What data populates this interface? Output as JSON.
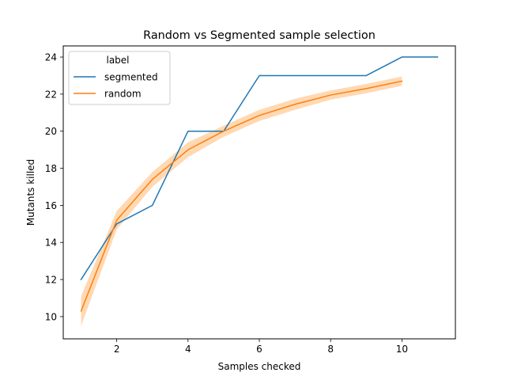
{
  "chart_data": {
    "type": "line",
    "title": "Random vs Segmented sample selection",
    "xlabel": "Samples checked",
    "ylabel": "Mutants killed",
    "xlim": [
      0.5,
      11.5
    ],
    "ylim": [
      8.8,
      24.6
    ],
    "x_ticks": [
      2,
      4,
      6,
      8,
      10
    ],
    "y_ticks": [
      10,
      12,
      14,
      16,
      18,
      20,
      22,
      24
    ],
    "grid": false,
    "legend": {
      "title": "label",
      "placement": "top-left"
    },
    "series": [
      {
        "name": "segmented",
        "color": "#1f77b4",
        "x": [
          1,
          2,
          3,
          4,
          5,
          6,
          7,
          8,
          9,
          10,
          11
        ],
        "y": [
          12,
          15,
          16,
          20,
          20,
          23,
          23,
          23,
          23,
          24,
          24
        ]
      },
      {
        "name": "random",
        "color": "#ff7f0e",
        "x": [
          1,
          2,
          3,
          4,
          5,
          6,
          7,
          8,
          9,
          10
        ],
        "y": [
          10.3,
          15.2,
          17.4,
          19.0,
          20.0,
          20.85,
          21.45,
          21.95,
          22.3,
          22.7
        ],
        "ci_lower": [
          9.5,
          14.7,
          17.0,
          18.6,
          19.7,
          20.55,
          21.15,
          21.7,
          22.05,
          22.45
        ],
        "ci_upper": [
          11.1,
          15.7,
          17.8,
          19.4,
          20.3,
          21.15,
          21.75,
          22.2,
          22.55,
          22.95
        ],
        "band_color": "#ffcc99"
      }
    ]
  }
}
